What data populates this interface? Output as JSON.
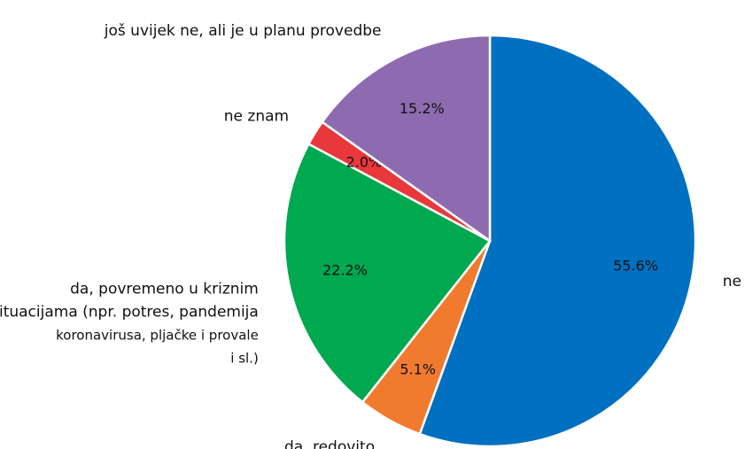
{
  "chart_data": {
    "type": "pie",
    "categories": [
      "ne",
      "da, redovito",
      "da, povremeno u kriznim\nsituacijama (npr. potres, pandemija\nkoronavirusa, pljačke i provale\ni sl.)",
      "ne znam",
      "još uvijek ne, ali je u planu provedbe"
    ],
    "values": [
      55.6,
      5.1,
      22.2,
      2.0,
      15.2
    ],
    "value_labels": [
      "55.6%",
      "5.1%",
      "22.2%",
      "2.0%",
      "15.2%"
    ],
    "colors": [
      "#0070c0",
      "#f07b2f",
      "#00a84f",
      "#e8383b",
      "#8e6bb0"
    ],
    "start_angle": 90,
    "direction": "clockwise"
  }
}
